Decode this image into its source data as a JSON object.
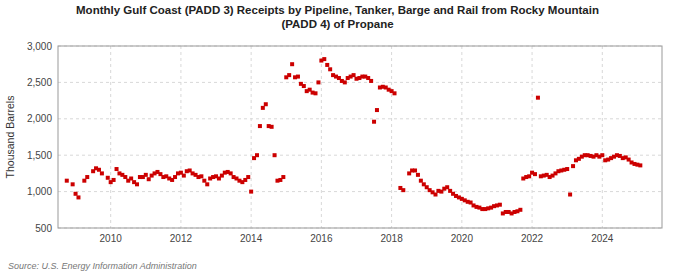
{
  "chart_data": {
    "type": "scatter",
    "title": "Monthly Gulf Coast (PADD 3) Receipts by Pipeline, Tanker, Barge and Rail from Rocky Mountain\n(PADD 4) of Propane",
    "y_label": "Thousand Barrels",
    "source": "Source: U.S. Energy Information Administration",
    "color": "#cc0000",
    "marker": "square",
    "grid": true,
    "xlim": [
      2008.5,
      2025.7
    ],
    "xticks": [
      2010,
      2012,
      2014,
      2016,
      2018,
      2020,
      2022,
      2024
    ],
    "ylim": [
      500,
      3000
    ],
    "yticks": [
      500,
      {
        "value": 1000,
        "label": "1,000"
      },
      {
        "value": 1500,
        "label": "1,500"
      },
      {
        "value": 2000,
        "label": "2,000"
      },
      {
        "value": 2500,
        "label": "2,500"
      },
      {
        "value": 3000,
        "label": "3,000"
      }
    ],
    "x": [
      2008.75,
      2008.917,
      2009.0,
      2009.083,
      2009.25,
      2009.333,
      2009.5,
      2009.583,
      2009.667,
      2009.75,
      2009.917,
      2010.0,
      2010.083,
      2010.167,
      2010.25,
      2010.333,
      2010.417,
      2010.5,
      2010.583,
      2010.667,
      2010.75,
      2010.833,
      2010.917,
      2011.0,
      2011.083,
      2011.167,
      2011.25,
      2011.333,
      2011.417,
      2011.5,
      2011.583,
      2011.667,
      2011.75,
      2011.833,
      2011.917,
      2012.0,
      2012.083,
      2012.167,
      2012.25,
      2012.333,
      2012.417,
      2012.5,
      2012.583,
      2012.667,
      2012.75,
      2012.833,
      2012.917,
      2013.0,
      2013.083,
      2013.167,
      2013.25,
      2013.333,
      2013.417,
      2013.5,
      2013.583,
      2013.667,
      2013.75,
      2013.833,
      2013.917,
      2014.0,
      2014.083,
      2014.167,
      2014.25,
      2014.333,
      2014.417,
      2014.5,
      2014.583,
      2014.667,
      2014.75,
      2014.833,
      2014.917,
      2015.0,
      2015.083,
      2015.167,
      2015.25,
      2015.333,
      2015.417,
      2015.5,
      2015.583,
      2015.667,
      2015.75,
      2015.833,
      2015.917,
      2016.0,
      2016.083,
      2016.167,
      2016.25,
      2016.333,
      2016.417,
      2016.5,
      2016.583,
      2016.667,
      2016.75,
      2016.833,
      2016.917,
      2017.0,
      2017.083,
      2017.167,
      2017.25,
      2017.333,
      2017.417,
      2017.5,
      2017.583,
      2017.667,
      2017.75,
      2017.833,
      2017.917,
      2018.0,
      2018.083,
      2018.25,
      2018.333,
      2018.5,
      2018.583,
      2018.667,
      2018.75,
      2018.833,
      2018.917,
      2019.0,
      2019.083,
      2019.167,
      2019.25,
      2019.333,
      2019.417,
      2019.5,
      2019.583,
      2019.667,
      2019.75,
      2019.833,
      2019.917,
      2020.0,
      2020.083,
      2020.167,
      2020.25,
      2020.333,
      2020.417,
      2020.5,
      2020.583,
      2020.667,
      2020.75,
      2020.833,
      2020.917,
      2021.0,
      2021.083,
      2021.167,
      2021.25,
      2021.333,
      2021.417,
      2021.5,
      2021.583,
      2021.667,
      2021.75,
      2021.833,
      2021.917,
      2022.0,
      2022.083,
      2022.167,
      2022.25,
      2022.333,
      2022.417,
      2022.5,
      2022.583,
      2022.667,
      2022.75,
      2022.833,
      2022.917,
      2023.0,
      2023.083,
      2023.167,
      2023.25,
      2023.333,
      2023.417,
      2023.5,
      2023.583,
      2023.667,
      2023.75,
      2023.833,
      2023.917,
      2024.0,
      2024.083,
      2024.167,
      2024.25,
      2024.333,
      2024.417,
      2024.5,
      2024.583,
      2024.667,
      2024.75,
      2024.833,
      2024.917,
      2025.0,
      2025.083
    ],
    "values": [
      1150,
      1100,
      970,
      920,
      1150,
      1200,
      1280,
      1320,
      1300,
      1250,
      1190,
      1130,
      1160,
      1310,
      1250,
      1230,
      1200,
      1150,
      1180,
      1130,
      1100,
      1200,
      1200,
      1230,
      1170,
      1220,
      1250,
      1270,
      1240,
      1200,
      1210,
      1180,
      1160,
      1200,
      1250,
      1260,
      1220,
      1280,
      1290,
      1250,
      1230,
      1200,
      1210,
      1150,
      1100,
      1180,
      1200,
      1210,
      1180,
      1220,
      1260,
      1270,
      1250,
      1200,
      1180,
      1150,
      1130,
      1160,
      1200,
      1000,
      1460,
      1500,
      1900,
      2150,
      2200,
      1900,
      1890,
      1500,
      1150,
      1160,
      1200,
      2570,
      2600,
      2750,
      2570,
      2580,
      2480,
      2450,
      2380,
      2400,
      2360,
      2350,
      2500,
      2800,
      2820,
      2740,
      2680,
      2600,
      2580,
      2560,
      2520,
      2500,
      2560,
      2580,
      2600,
      2550,
      2560,
      2580,
      2580,
      2560,
      2520,
      1960,
      2120,
      2430,
      2440,
      2430,
      2400,
      2380,
      2350,
      1050,
      1020,
      1250,
      1290,
      1290,
      1230,
      1150,
      1100,
      1060,
      1020,
      990,
      960,
      1010,
      1000,
      1040,
      1060,
      1010,
      970,
      940,
      920,
      900,
      880,
      860,
      850,
      810,
      790,
      780,
      760,
      760,
      770,
      780,
      800,
      810,
      820,
      700,
      720,
      720,
      700,
      720,
      730,
      750,
      1180,
      1200,
      1210,
      1260,
      1240,
      2290,
      1210,
      1220,
      1230,
      1200,
      1220,
      1250,
      1280,
      1290,
      1300,
      1310,
      960,
      1350,
      1430,
      1450,
      1480,
      1500,
      1500,
      1490,
      1480,
      1500,
      1480,
      1500,
      1430,
      1440,
      1460,
      1480,
      1500,
      1490,
      1460,
      1470,
      1440,
      1400,
      1380,
      1370,
      1360
    ]
  }
}
